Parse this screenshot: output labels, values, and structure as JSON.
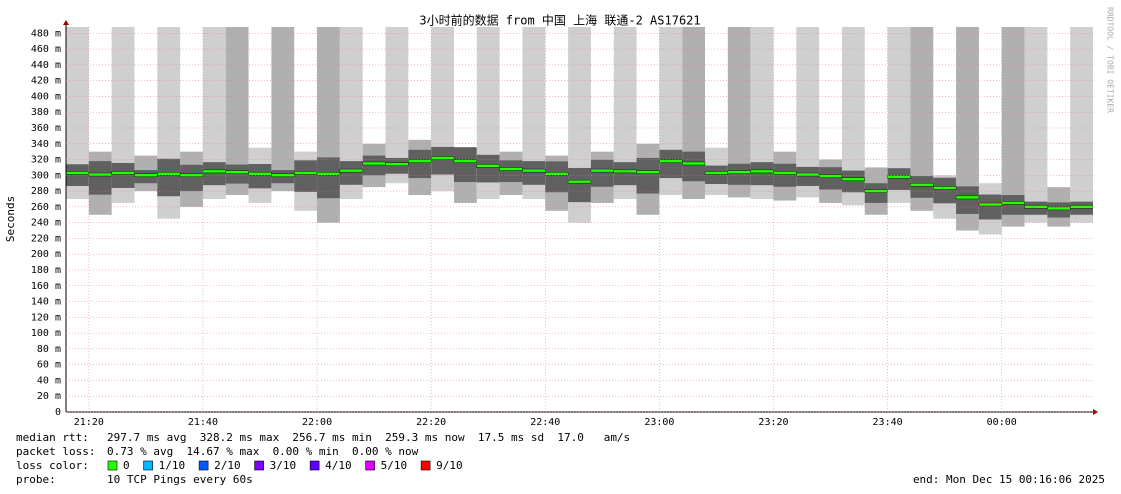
{
  "chart_data": {
    "type": "smokeping",
    "title": "3小时前的数据 from 中国 上海 联通-2 AS17621",
    "y_label": "Seconds",
    "watermark": "RRDTOOL / TOBI OETIKER",
    "x": [
      "21:16",
      "21:20",
      "21:24",
      "21:28",
      "21:32",
      "21:36",
      "21:40",
      "21:44",
      "21:48",
      "21:52",
      "21:56",
      "22:00",
      "22:04",
      "22:08",
      "22:12",
      "22:16",
      "22:20",
      "22:24",
      "22:28",
      "22:32",
      "22:36",
      "22:40",
      "22:44",
      "22:48",
      "22:52",
      "22:56",
      "23:00",
      "23:04",
      "23:08",
      "23:12",
      "23:16",
      "23:20",
      "23:24",
      "23:28",
      "23:32",
      "23:36",
      "23:40",
      "23:44",
      "23:48",
      "23:52",
      "23:56",
      "00:00",
      "00:04",
      "00:08",
      "00:12"
    ],
    "median": [
      303,
      301,
      303,
      300,
      302,
      300,
      305,
      304,
      302,
      300,
      303,
      302,
      306,
      315,
      314,
      318,
      322,
      318,
      312,
      308,
      306,
      302,
      292,
      306,
      305,
      304,
      318,
      315,
      303,
      304,
      305,
      303,
      301,
      299,
      295,
      280,
      298,
      288,
      284,
      272,
      263,
      265,
      260,
      258,
      260
    ],
    "smoke_low": [
      270,
      250,
      265,
      280,
      245,
      260,
      270,
      275,
      265,
      280,
      255,
      240,
      270,
      285,
      290,
      275,
      280,
      265,
      270,
      275,
      270,
      255,
      240,
      265,
      270,
      250,
      275,
      270,
      275,
      272,
      270,
      268,
      272,
      265,
      262,
      250,
      265,
      255,
      245,
      230,
      225,
      235,
      240,
      235,
      240
    ],
    "smoke_high": [
      600,
      330,
      600,
      325,
      600,
      330,
      600,
      600,
      335,
      600,
      330,
      600,
      600,
      340,
      600,
      345,
      600,
      335,
      600,
      330,
      600,
      325,
      600,
      330,
      600,
      340,
      600,
      600,
      335,
      600,
      600,
      330,
      600,
      320,
      600,
      310,
      600,
      600,
      300,
      600,
      290,
      600,
      600,
      285,
      600
    ],
    "xlim": [
      "21:16",
      "00:16"
    ],
    "xticks": [
      "21:20",
      "21:40",
      "22:00",
      "22:20",
      "22:40",
      "23:00",
      "23:20",
      "23:40",
      "00:00"
    ],
    "ylim": [
      0,
      488
    ],
    "yticks": [
      0,
      {
        "value": 20,
        "label": "20 m"
      },
      {
        "value": 40,
        "label": "40 m"
      },
      {
        "value": 60,
        "label": "60 m"
      },
      {
        "value": 80,
        "label": "80 m"
      },
      {
        "value": 100,
        "label": "100 m"
      },
      {
        "value": 120,
        "label": "120 m"
      },
      {
        "value": 140,
        "label": "140 m"
      },
      {
        "value": 160,
        "label": "160 m"
      },
      {
        "value": 180,
        "label": "180 m"
      },
      {
        "value": 200,
        "label": "200 m"
      },
      {
        "value": 220,
        "label": "220 m"
      },
      {
        "value": 240,
        "label": "240 m"
      },
      {
        "value": 260,
        "label": "260 m"
      },
      {
        "value": 280,
        "label": "280 m"
      },
      {
        "value": 300,
        "label": "300 m"
      },
      {
        "value": 320,
        "label": "320 m"
      },
      {
        "value": 340,
        "label": "340 m"
      },
      {
        "value": 360,
        "label": "360 m"
      },
      {
        "value": 380,
        "label": "380 m"
      },
      {
        "value": 400,
        "label": "400 m"
      },
      {
        "value": 420,
        "label": "420 m"
      },
      {
        "value": 440,
        "label": "440 m"
      },
      {
        "value": 460,
        "label": "460 m"
      },
      {
        "value": 480,
        "label": "480 m"
      }
    ],
    "grid": true,
    "stats": [
      {
        "label": "median rtt:",
        "text": "297.7 ms avg  328.2 ms max  256.7 ms min  259.3 ms now  17.5 ms sd  17.0   am/s"
      },
      {
        "label": "packet loss:",
        "text": "0.73 % avg  14.67 % max  0.00 % min  0.00 % now"
      }
    ],
    "loss_color_label": "loss color:",
    "loss_colors": [
      {
        "label": "0",
        "color": "#26ff00"
      },
      {
        "label": "1/10",
        "color": "#00b8ff"
      },
      {
        "label": "2/10",
        "color": "#0059ff"
      },
      {
        "label": "3/10",
        "color": "#7e00ff"
      },
      {
        "label": "4/10",
        "color": "#5e00ff"
      },
      {
        "label": "5/10",
        "color": "#dd00ff"
      },
      {
        "label": "9/10",
        "color": "#ff0000"
      }
    ],
    "probe_label": "probe:",
    "probe": "10 TCP Pings every 60s",
    "end": "end: Mon Dec 15 00:16:06 2025"
  }
}
